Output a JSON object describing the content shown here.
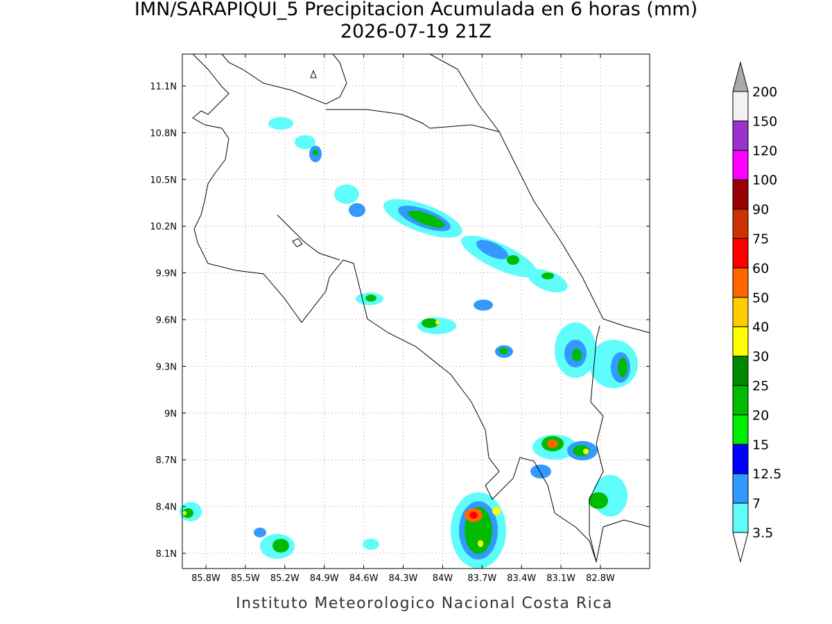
{
  "title": "IMN/SARAPIQUI_5 Precipitacion Acumulada en 6 horas (mm)",
  "subtitle": "2026-07-19 21Z",
  "lat_ticks": [
    "11.1N",
    "10.8N",
    "10.5N",
    "10.2N",
    "9.9N",
    "9.6N",
    "9.3N",
    "9N",
    "8.7N",
    "8.4N",
    "8.1N"
  ],
  "lon_ticks": [
    "85.8W",
    "85.5W",
    "85.2W",
    "84.9W",
    "84.6W",
    "84.3W",
    "84W",
    "83.7W",
    "83.4W",
    "83.1W",
    "82.8W"
  ],
  "colorbar": {
    "levels": [
      "3.5",
      "7",
      "12.5",
      "15",
      "20",
      "25",
      "30",
      "40",
      "50",
      "60",
      "75",
      "90",
      "100",
      "120",
      "150",
      "200"
    ],
    "colors": [
      "#5ffcfc",
      "#3399ff",
      "#0000ff",
      "#00ee00",
      "#00bb00",
      "#008800",
      "#ffff00",
      "#ffcc00",
      "#ff6600",
      "#ff0000",
      "#cc3300",
      "#990000",
      "#ff00ff",
      "#9933cc",
      "#f2f2f2"
    ],
    "below_color": "#ffffff",
    "above_color": "#aaaaaa"
  },
  "footer": "Instituto Meteorologico Nacional Costa Rica"
}
